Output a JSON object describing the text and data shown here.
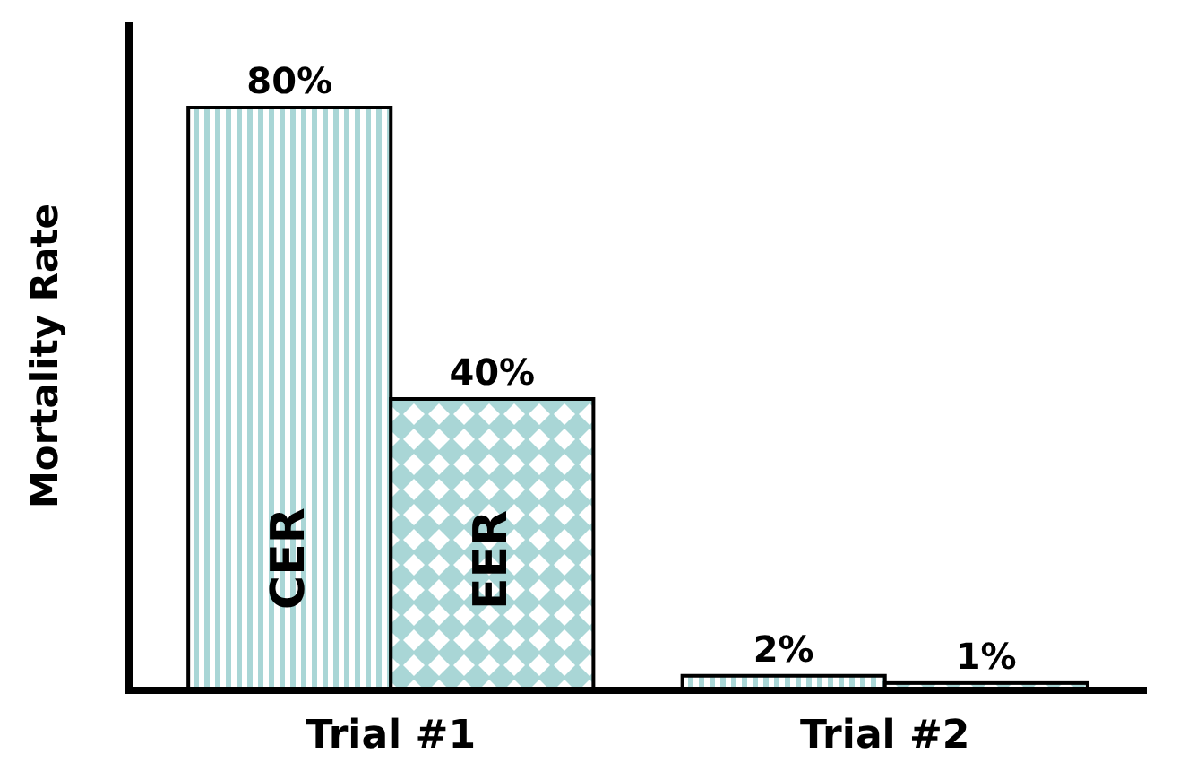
{
  "chart_data": {
    "type": "bar",
    "ylabel": "Mortality Rate",
    "categories": [
      "Trial #1",
      "Trial #2"
    ],
    "series": [
      {
        "name": "CER",
        "color": "#a9d6d6",
        "values": [
          80,
          2
        ],
        "value_labels": [
          "80%",
          "2%"
        ]
      },
      {
        "name": "EER",
        "color": "#a9d6d6",
        "values": [
          40,
          1
        ],
        "value_labels": [
          "40%",
          "1%"
        ]
      }
    ]
  }
}
